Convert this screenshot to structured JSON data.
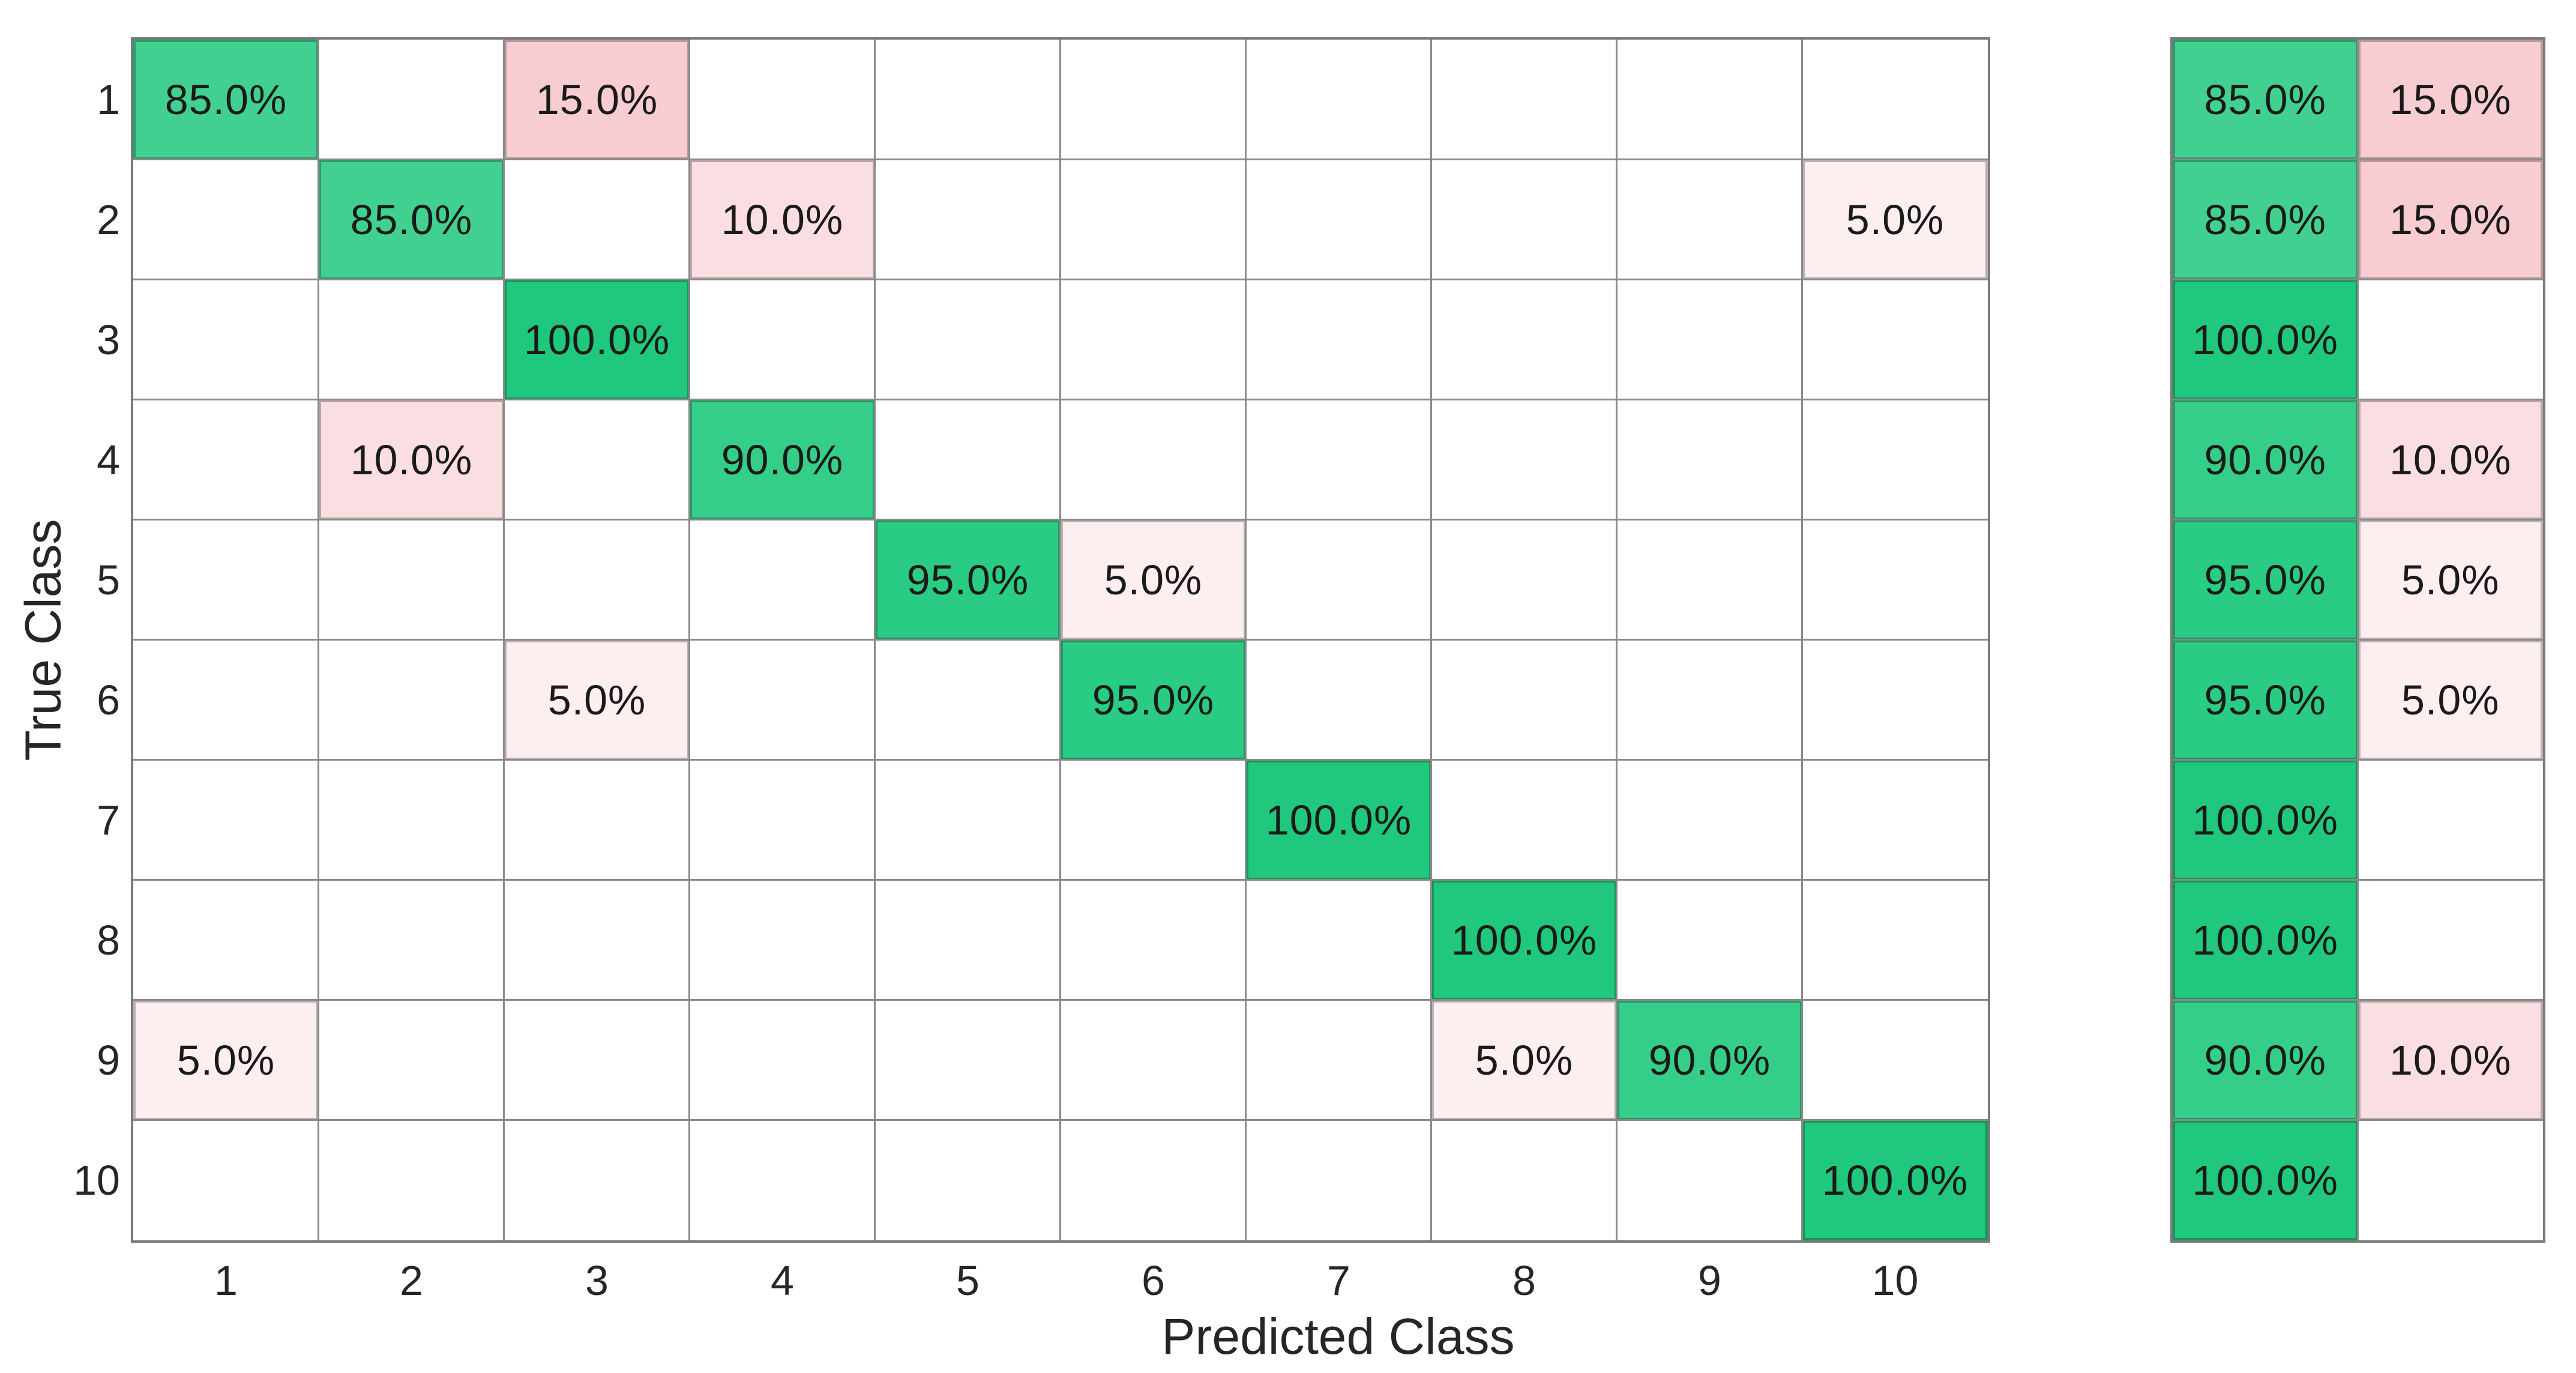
{
  "chart_data": {
    "type": "heatmap",
    "subtype": "confusion-matrix-row-normalized",
    "title": "",
    "xlabel": "Predicted Class",
    "ylabel": "True Class",
    "x_tick_labels": [
      "1",
      "2",
      "3",
      "4",
      "5",
      "6",
      "7",
      "8",
      "9",
      "10"
    ],
    "y_tick_labels": [
      "1",
      "2",
      "3",
      "4",
      "5",
      "6",
      "7",
      "8",
      "9",
      "10"
    ],
    "value_format": "percent-one-decimal",
    "matrix_percent": [
      [
        85,
        null,
        15,
        null,
        null,
        null,
        null,
        null,
        null,
        null
      ],
      [
        null,
        85,
        null,
        10,
        null,
        null,
        null,
        null,
        null,
        5
      ],
      [
        null,
        null,
        100,
        null,
        null,
        null,
        null,
        null,
        null,
        null
      ],
      [
        null,
        10,
        null,
        90,
        null,
        null,
        null,
        null,
        null,
        null
      ],
      [
        null,
        null,
        null,
        null,
        95,
        5,
        null,
        null,
        null,
        null
      ],
      [
        null,
        null,
        5,
        null,
        null,
        95,
        null,
        null,
        null,
        null
      ],
      [
        null,
        null,
        null,
        null,
        null,
        null,
        100,
        null,
        null,
        null
      ],
      [
        null,
        null,
        null,
        null,
        null,
        null,
        null,
        100,
        null,
        null
      ],
      [
        5,
        null,
        null,
        null,
        null,
        null,
        null,
        5,
        90,
        null
      ],
      [
        null,
        null,
        null,
        null,
        null,
        null,
        null,
        null,
        null,
        100
      ]
    ],
    "row_summary_percent": [
      {
        "correct": 85,
        "incorrect": 15
      },
      {
        "correct": 85,
        "incorrect": 15
      },
      {
        "correct": 100,
        "incorrect": null
      },
      {
        "correct": 90,
        "incorrect": 10
      },
      {
        "correct": 95,
        "incorrect": 5
      },
      {
        "correct": 95,
        "incorrect": 5
      },
      {
        "correct": 100,
        "incorrect": null
      },
      {
        "correct": 100,
        "incorrect": null
      },
      {
        "correct": 90,
        "incorrect": 10
      },
      {
        "correct": 100,
        "incorrect": null
      }
    ],
    "colors": {
      "diagonal_full": "#1FC87C",
      "off_diagonal_full": "#F8CDD2",
      "off_diagonal_max_percent": 15,
      "grid_line": "#8A8A8A",
      "axes_border": "#7A7A7A",
      "cell_text": "#1A1A1A",
      "tick_text": "#262626"
    },
    "grid": true,
    "legend_position": "none"
  }
}
